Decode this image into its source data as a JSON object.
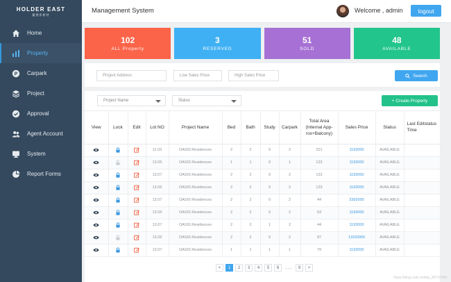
{
  "brand": {
    "logo_text": "HOLDER EAST",
    "logo_sub": "霍德伊斯特"
  },
  "sidebar": {
    "items": [
      {
        "label": "Home",
        "icon": "home-icon"
      },
      {
        "label": "Property",
        "icon": "bar-chart-icon",
        "active": true
      },
      {
        "label": "Carpark",
        "icon": "parking-icon"
      },
      {
        "label": "Project",
        "icon": "layers-icon"
      },
      {
        "label": "Approval",
        "icon": "check-badge-icon"
      },
      {
        "label": "Agent Account",
        "icon": "users-icon"
      },
      {
        "label": "System",
        "icon": "monitor-icon"
      },
      {
        "label": "Report Forms",
        "icon": "pie-chart-icon"
      }
    ]
  },
  "header": {
    "title": "Management System",
    "welcome": "Welcome , admin",
    "logout_label": "logout"
  },
  "stats": [
    {
      "value": "102",
      "label": "ALL  Property",
      "color": "#fb6449"
    },
    {
      "value": "3",
      "label": "RESERVED",
      "color": "#3fb0f4"
    },
    {
      "value": "51",
      "label": "SOLD",
      "color": "#a670d4"
    },
    {
      "value": "48",
      "label": "AVAILABLE",
      "color": "#22c58b"
    }
  ],
  "search": {
    "address_placeholder": "Project Address",
    "low_price_placeholder": "Low Sales Price",
    "high_price_placeholder": "High Sales Price",
    "search_label": "Search"
  },
  "filters": {
    "project_name": "Project Name",
    "status": "Status",
    "create_label": "+ Create Property"
  },
  "table": {
    "headers": {
      "view": "View",
      "lock": "Lock",
      "edit": "Edit",
      "lot": "Lot NO",
      "project": "Project Name",
      "bed": "Bed",
      "bath": "Bath",
      "study": "Study",
      "carpark": "Carpark",
      "area1": "Total Area",
      "area2": "(Internal App-",
      "area3": "rox+Balcony)",
      "price": "Sales Price",
      "status": "Status",
      "last1": "Last Editstatus",
      "last2": "Time"
    },
    "rows": [
      {
        "locked": true,
        "lot": "11.03",
        "project": "OASIS Residences",
        "bed": "2",
        "bath": "2",
        "study": "0",
        "carpark": "2",
        "area": "221",
        "price": "1192000",
        "status": "AVAILABLE"
      },
      {
        "locked": false,
        "lot": "13.05",
        "project": "OASIS Residences",
        "bed": "1",
        "bath": "1",
        "study": "0",
        "carpark": "1",
        "area": "123",
        "price": "1192000",
        "status": "AVAILABLE"
      },
      {
        "locked": true,
        "lot": "13.07",
        "project": "OASIS Residences",
        "bed": "2",
        "bath": "2",
        "study": "0",
        "carpark": "2",
        "area": "123",
        "price": "1192000",
        "status": "AVAILABLE"
      },
      {
        "locked": true,
        "lot": "13.05",
        "project": "OASIS Residences",
        "bed": "2",
        "bath": "2",
        "study": "0",
        "carpark": "2",
        "area": "123",
        "price": "1192000",
        "status": "AVAILABLE"
      },
      {
        "locked": true,
        "lot": "13.07",
        "project": "OASIS Residences",
        "bed": "2",
        "bath": "2",
        "study": "0",
        "carpark": "2",
        "area": "44",
        "price": "3392000",
        "status": "AVAILABLE"
      },
      {
        "locked": true,
        "lot": "13.05",
        "project": "OASIS Residences",
        "bed": "2",
        "bath": "2",
        "study": "0",
        "carpark": "2",
        "area": "53",
        "price": "1192000",
        "status": "AVAILABLE"
      },
      {
        "locked": true,
        "lot": "13.07",
        "project": "OASIS Residences",
        "bed": "2",
        "bath": "2",
        "study": "1",
        "carpark": "2",
        "area": "44",
        "price": "1192000",
        "status": "AVAILABLE"
      },
      {
        "locked": false,
        "lot": "13.05",
        "project": "OASIS Residences",
        "bed": "2",
        "bath": "2",
        "study": "0",
        "carpark": "2",
        "area": "87",
        "price": "11920000",
        "status": "AVAILABLE"
      },
      {
        "locked": true,
        "lot": "13.07",
        "project": "OASIS Residences",
        "bed": "1",
        "bath": "1",
        "study": "1",
        "carpark": "1",
        "area": "79",
        "price": "1192000",
        "status": "AVAILABLE"
      }
    ]
  },
  "pagination": {
    "prev": "<",
    "pages": [
      "1",
      "2",
      "3",
      "4",
      "5",
      "6"
    ],
    "ellipsis": "......",
    "last": "9",
    "next": ">",
    "current": "1"
  },
  "watermark": "https://blog.csdn.net/qq_39715764"
}
